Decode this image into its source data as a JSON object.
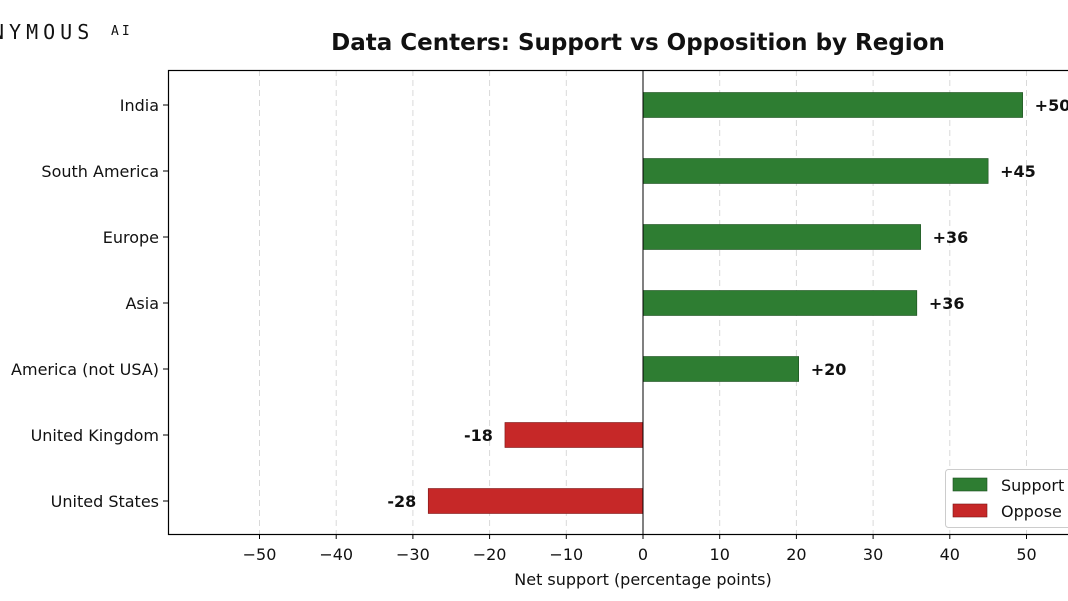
{
  "logo": {
    "text": "NYMOUS",
    "suffix": "AI"
  },
  "chart_data": {
    "type": "bar",
    "orientation": "horizontal",
    "title": "Data Centers: Support vs Opposition by Region",
    "xlabel": "Net support (percentage points)",
    "ylabel": "",
    "xlim": [
      -60,
      55
    ],
    "xticks": [
      -50,
      -40,
      -30,
      -20,
      -10,
      0,
      10,
      20,
      30,
      40,
      50
    ],
    "xtick_labels": [
      "−50",
      "−40",
      "−30",
      "−20",
      "−10",
      "0",
      "10",
      "20",
      "30",
      "40",
      "50"
    ],
    "grid": "vertical dashed",
    "categories": [
      "India",
      "South America",
      "Europe",
      "Asia",
      "America (not USA)",
      "United Kingdom",
      "United States"
    ],
    "values": [
      49.5,
      45,
      36.2,
      35.7,
      20.3,
      -18,
      -28
    ],
    "value_labels": [
      "+50",
      "+45",
      "+36",
      "+36",
      "+20",
      "-18",
      "-28"
    ],
    "colors": {
      "support": "#2e7d32",
      "oppose": "#c62828"
    },
    "legend": {
      "placement": "bottom-right",
      "entries": [
        {
          "label": "Support",
          "color": "#2e7d32"
        },
        {
          "label": "Oppose",
          "color": "#c62828"
        }
      ]
    }
  }
}
